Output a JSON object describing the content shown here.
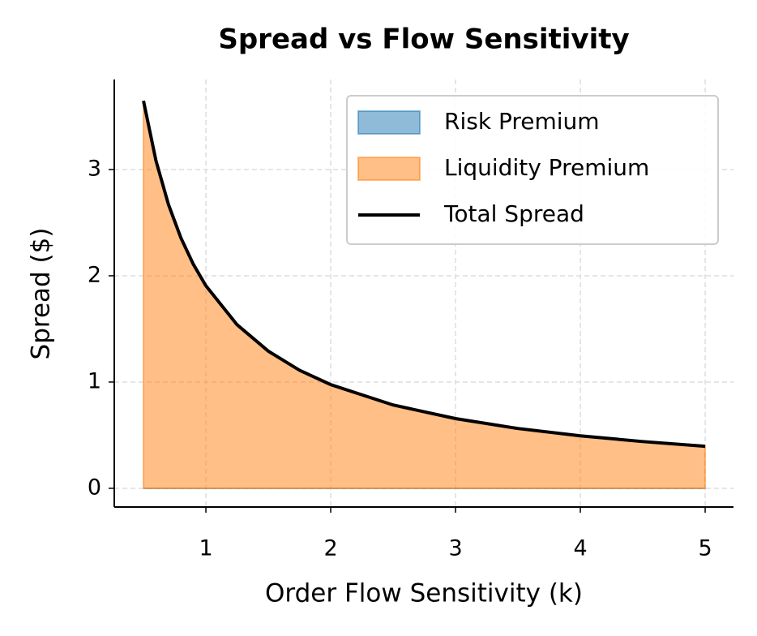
{
  "chart_data": {
    "type": "stacked-area",
    "title": "Spread vs Flow Sensitivity",
    "x_label": "Order Flow Sensitivity (k)",
    "y_label": "Spread ($)",
    "x": [
      0.5,
      0.6,
      0.7,
      0.8,
      0.9,
      1,
      1.25,
      1.5,
      1.75,
      2,
      2.5,
      3,
      3.5,
      4,
      4.5,
      5
    ],
    "series": [
      {
        "name": "Risk Premium",
        "color": "#1f77b4",
        "values": [
          0,
          0,
          0,
          0,
          0,
          0,
          0,
          0,
          0,
          0,
          0,
          0,
          0,
          0,
          0,
          0
        ]
      },
      {
        "name": "Liquidity Premium",
        "color": "#ff7f0e",
        "values": [
          3.646,
          3.083,
          2.671,
          2.356,
          2.107,
          1.906,
          1.539,
          1.291,
          1.111,
          0.976,
          0.784,
          0.656,
          0.563,
          0.494,
          0.44,
          0.396
        ]
      }
    ],
    "line": {
      "name": "Total Spread",
      "color": "#000000",
      "values": [
        3.646,
        3.083,
        2.671,
        2.356,
        2.107,
        1.906,
        1.539,
        1.291,
        1.111,
        0.976,
        0.784,
        0.656,
        0.563,
        0.494,
        0.44,
        0.396
      ]
    },
    "xlim": [
      0.266,
      5.227
    ],
    "ylim": [
      -0.176,
      3.847
    ],
    "xticks": [
      1,
      2,
      3,
      4,
      5
    ],
    "yticks": [
      0,
      1,
      2,
      3
    ],
    "grid": true,
    "legend": "upper right"
  }
}
